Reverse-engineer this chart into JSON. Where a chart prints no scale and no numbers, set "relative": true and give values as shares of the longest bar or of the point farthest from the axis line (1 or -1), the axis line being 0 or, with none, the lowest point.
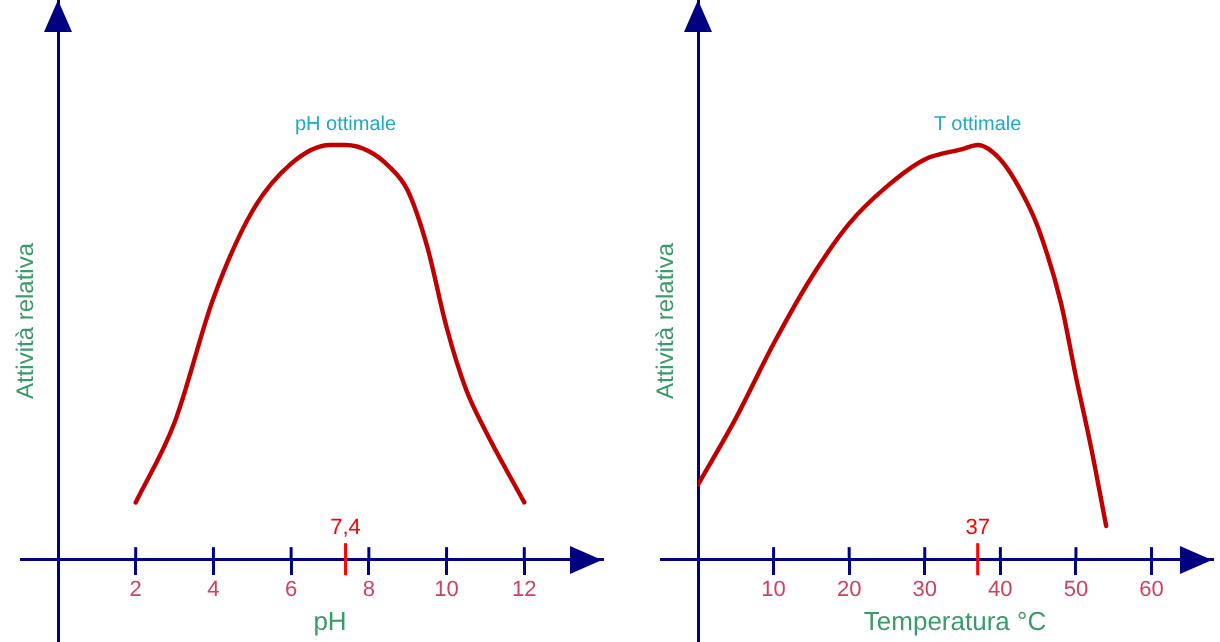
{
  "chart_data": [
    {
      "type": "line",
      "relative": true,
      "xlabel": "pH",
      "ylabel": "Attività relativa",
      "tick_labels": "x",
      "x": [
        2,
        3,
        4,
        5,
        6,
        7,
        7.4,
        8,
        8.5,
        9,
        9.5,
        10,
        10.5,
        11,
        12
      ],
      "series": [
        {
          "color": "#c00000",
          "values": [
            0.137,
            0.33,
            0.63,
            0.84,
            0.955,
            1.0,
            1.0,
            0.985,
            0.95,
            0.89,
            0.755,
            0.56,
            0.41,
            0.31,
            0.137
          ]
        }
      ],
      "xlim": [
        0,
        14
      ],
      "xticks": [
        2,
        4,
        6,
        8,
        10,
        12
      ],
      "ref_lines": [
        {
          "axis": "x",
          "value": 7.4,
          "label": "7,4",
          "color": "#ff0000"
        }
      ],
      "annotations": [
        {
          "text": "pH ottimale",
          "x": 7.4,
          "y": 1
        }
      ]
    },
    {
      "type": "line",
      "relative": true,
      "xlabel": "Temperatura °C",
      "ylabel": "Attività relativa",
      "tick_labels": "x",
      "x": [
        0,
        5,
        10,
        15,
        20,
        25,
        30,
        35,
        37,
        40,
        43,
        45,
        48,
        50,
        52,
        54
      ],
      "series": [
        {
          "color": "#c00000",
          "values": [
            0.18,
            0.34,
            0.52,
            0.68,
            0.81,
            0.9,
            0.965,
            0.99,
            1.0,
            0.965,
            0.88,
            0.8,
            0.62,
            0.44,
            0.27,
            0.08
          ]
        }
      ],
      "xlim": [
        0,
        68
      ],
      "xticks": [
        10,
        20,
        30,
        40,
        50,
        60
      ],
      "ref_lines": [
        {
          "axis": "x",
          "value": 37,
          "label": "37",
          "color": "#ff0000"
        }
      ],
      "annotations": [
        {
          "text": "T ottimale",
          "x": 37,
          "y": 1
        }
      ]
    }
  ]
}
